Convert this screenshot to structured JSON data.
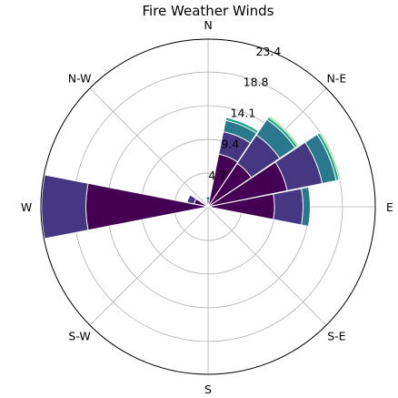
{
  "chart_data": {
    "type": "windrose",
    "title": "Fire Weather Winds",
    "direction_labels": [
      "N",
      "N-E",
      "E",
      "S-E",
      "S",
      "S-W",
      "W",
      "N-W"
    ],
    "direction_angles_deg": [
      0,
      45,
      90,
      135,
      180,
      225,
      270,
      315
    ],
    "radial_ticks": [
      "4.7",
      "9.4",
      "14.1",
      "18.8",
      "23.4"
    ],
    "radial_tick_values": [
      4.7,
      9.4,
      14.1,
      18.8,
      23.4
    ],
    "rmax": 23.4,
    "grid": true,
    "bin_colors": [
      "#440154",
      "#453781",
      "#2a788e",
      "#20a486",
      "#7ad151"
    ],
    "bars": [
      {
        "direction_deg": 0,
        "values": [
          0.3,
          0.6,
          0.5
        ]
      },
      {
        "direction_deg": 22.5,
        "values": [
          7.5,
          3.2,
          1.6,
          0.4
        ]
      },
      {
        "direction_deg": 45,
        "values": [
          7.3,
          4.8,
          2.6,
          0.4,
          0.2
        ]
      },
      {
        "direction_deg": 67.5,
        "values": [
          11.3,
          5.0,
          2.0,
          0.4,
          0.2
        ]
      },
      {
        "direction_deg": 90,
        "values": [
          9.3,
          4.0,
          1.0
        ]
      },
      {
        "direction_deg": 270,
        "values": [
          17.1,
          6.2
        ]
      },
      {
        "direction_deg": 292.5,
        "values": [
          2.0,
          1.0
        ]
      }
    ]
  }
}
